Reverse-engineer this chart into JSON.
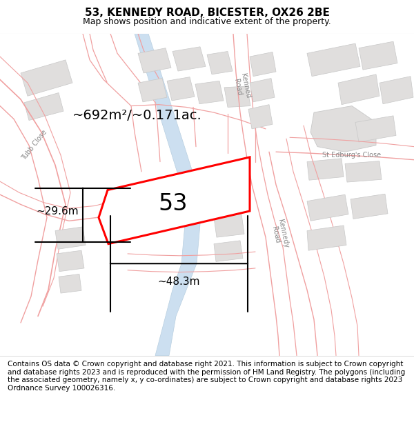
{
  "title": "53, KENNEDY ROAD, BICESTER, OX26 2BE",
  "subtitle": "Map shows position and indicative extent of the property.",
  "footer": "Contains OS data © Crown copyright and database right 2021. This information is subject to Crown copyright and database rights 2023 and is reproduced with the permission of HM Land Registry. The polygons (including the associated geometry, namely x, y co-ordinates) are subject to Crown copyright and database rights 2023 Ordnance Survey 100026316.",
  "area_label": "~692m²/~0.171ac.",
  "number_label": "53",
  "width_label": "~48.3m",
  "height_label": "~29.6m",
  "map_bg": "#ffffff",
  "building_fill": "#e0dedd",
  "building_edge": "#c8c8c8",
  "plot_fill": "#ffffff",
  "plot_edge": "#ff0000",
  "boundary_color": "#f0a0a0",
  "water_color": "#ccdff0",
  "water_edge": "#b8cfe0",
  "title_fontsize": 11,
  "subtitle_fontsize": 9,
  "footer_fontsize": 7.5,
  "area_fontsize": 14,
  "number_fontsize": 24,
  "dim_fontsize": 11,
  "road_label_fontsize": 7,
  "road_label_color": "#888888"
}
